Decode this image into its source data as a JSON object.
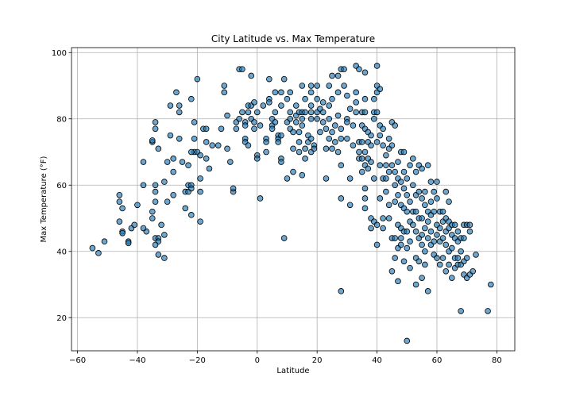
{
  "chart_data": {
    "type": "scatter",
    "title": "City Latitude vs. Max Temperature",
    "xlabel": "Latitude",
    "ylabel": "Max Temperature (°F)",
    "xlim": [
      -62,
      86
    ],
    "ylim": [
      10,
      101.5
    ],
    "xticks": [
      -60,
      -40,
      -20,
      0,
      20,
      40,
      60,
      80
    ],
    "yticks": [
      20,
      40,
      60,
      80,
      100
    ],
    "grid": true,
    "marker_color": "#1f77b4",
    "marker_edge_color": "#000000",
    "points": [
      [
        -55,
        41
      ],
      [
        -53,
        39.5
      ],
      [
        -51,
        43
      ],
      [
        -46,
        57
      ],
      [
        -46,
        55
      ],
      [
        -45,
        53
      ],
      [
        -46,
        49
      ],
      [
        -45,
        46
      ],
      [
        -45,
        45.5
      ],
      [
        -43,
        43
      ],
      [
        -43,
        42.5
      ],
      [
        -42,
        47
      ],
      [
        -41,
        48
      ],
      [
        -40,
        54
      ],
      [
        -38,
        60
      ],
      [
        -38,
        67
      ],
      [
        -37,
        46
      ],
      [
        -38,
        47
      ],
      [
        -35,
        73
      ],
      [
        -35,
        73.5
      ],
      [
        -34,
        77
      ],
      [
        -34,
        79
      ],
      [
        -33,
        71
      ],
      [
        -34,
        60
      ],
      [
        -34,
        58
      ],
      [
        -34,
        55
      ],
      [
        -35,
        52
      ],
      [
        -35,
        50
      ],
      [
        -34,
        44
      ],
      [
        -33,
        44
      ],
      [
        -33,
        43
      ],
      [
        -34,
        42
      ],
      [
        -33,
        39
      ],
      [
        -31,
        38
      ],
      [
        -31,
        45
      ],
      [
        -32,
        48
      ],
      [
        -31,
        61
      ],
      [
        -30,
        55
      ],
      [
        -30,
        67
      ],
      [
        -29,
        84
      ],
      [
        -29,
        75
      ],
      [
        -28,
        68
      ],
      [
        -28,
        64
      ],
      [
        -28,
        57
      ],
      [
        -27,
        88
      ],
      [
        -26,
        84
      ],
      [
        -26,
        82
      ],
      [
        -26,
        74
      ],
      [
        -25,
        67
      ],
      [
        -24,
        58
      ],
      [
        -24,
        53
      ],
      [
        -23,
        66
      ],
      [
        -23,
        60
      ],
      [
        -23,
        58
      ],
      [
        -22,
        86
      ],
      [
        -21,
        79
      ],
      [
        -21,
        74
      ],
      [
        -21,
        70
      ],
      [
        -22,
        70
      ],
      [
        -22,
        60
      ],
      [
        -22,
        59
      ],
      [
        -22,
        51
      ],
      [
        -20,
        92
      ],
      [
        -20,
        70
      ],
      [
        -19,
        69
      ],
      [
        -19,
        62
      ],
      [
        -19,
        58
      ],
      [
        -19,
        49
      ],
      [
        -18,
        77
      ],
      [
        -17,
        77
      ],
      [
        -17,
        73
      ],
      [
        -17,
        68
      ],
      [
        -16,
        65
      ],
      [
        -15,
        72
      ],
      [
        -13,
        72
      ],
      [
        -12,
        77
      ],
      [
        -11,
        90
      ],
      [
        -11,
        88
      ],
      [
        -10,
        81
      ],
      [
        -10,
        71
      ],
      [
        -9,
        67
      ],
      [
        -8,
        58
      ],
      [
        -8,
        59
      ],
      [
        -7,
        79
      ],
      [
        -7,
        77
      ],
      [
        -6,
        95
      ],
      [
        -6,
        80
      ],
      [
        -5,
        95
      ],
      [
        -5,
        82
      ],
      [
        -4,
        79
      ],
      [
        -4,
        78
      ],
      [
        -4,
        74
      ],
      [
        -4,
        73
      ],
      [
        -3,
        84
      ],
      [
        -3,
        82
      ],
      [
        -3,
        72
      ],
      [
        -2,
        93
      ],
      [
        -2,
        84
      ],
      [
        -2,
        80
      ],
      [
        -1,
        85
      ],
      [
        -1,
        79
      ],
      [
        -1,
        77
      ],
      [
        0,
        82
      ],
      [
        0,
        69
      ],
      [
        0,
        68
      ],
      [
        1,
        56
      ],
      [
        1,
        78
      ],
      [
        2,
        84
      ],
      [
        3,
        74
      ],
      [
        3,
        73
      ],
      [
        3,
        70
      ],
      [
        4,
        92
      ],
      [
        4,
        86
      ],
      [
        4,
        85
      ],
      [
        5,
        80
      ],
      [
        5,
        78
      ],
      [
        5,
        77
      ],
      [
        6,
        88
      ],
      [
        6,
        82
      ],
      [
        6,
        79
      ],
      [
        7,
        75
      ],
      [
        7,
        74
      ],
      [
        7,
        73
      ],
      [
        8,
        88
      ],
      [
        8,
        84
      ],
      [
        8,
        75
      ],
      [
        8,
        68
      ],
      [
        8,
        67
      ],
      [
        9,
        92
      ],
      [
        9,
        44
      ],
      [
        10,
        62
      ],
      [
        10,
        79
      ],
      [
        10,
        86
      ],
      [
        11,
        88
      ],
      [
        11,
        82
      ],
      [
        11,
        80
      ],
      [
        11,
        77
      ],
      [
        12,
        76
      ],
      [
        12,
        71
      ],
      [
        12,
        64
      ],
      [
        13,
        84
      ],
      [
        13,
        81
      ],
      [
        13,
        79
      ],
      [
        14,
        82
      ],
      [
        14,
        76
      ],
      [
        14,
        73
      ],
      [
        14,
        70
      ],
      [
        15,
        90
      ],
      [
        15,
        82
      ],
      [
        15,
        80
      ],
      [
        15,
        78
      ],
      [
        15,
        63
      ],
      [
        16,
        86
      ],
      [
        16,
        82
      ],
      [
        16,
        71
      ],
      [
        16,
        68
      ],
      [
        17,
        75
      ],
      [
        17,
        73
      ],
      [
        18,
        90
      ],
      [
        18,
        88
      ],
      [
        18,
        84
      ],
      [
        18,
        82
      ],
      [
        18,
        80
      ],
      [
        18,
        74
      ],
      [
        18,
        70
      ],
      [
        19,
        72
      ],
      [
        19,
        71
      ],
      [
        20,
        90
      ],
      [
        20,
        86
      ],
      [
        20,
        82
      ],
      [
        20,
        80
      ],
      [
        21,
        83
      ],
      [
        21,
        76
      ],
      [
        22,
        85
      ],
      [
        22,
        82
      ],
      [
        22,
        79
      ],
      [
        23,
        62
      ],
      [
        23,
        71
      ],
      [
        23,
        77
      ],
      [
        24,
        90
      ],
      [
        24,
        84
      ],
      [
        24,
        80
      ],
      [
        24,
        74
      ],
      [
        25,
        93
      ],
      [
        25,
        86
      ],
      [
        25,
        76
      ],
      [
        25,
        71
      ],
      [
        26,
        78
      ],
      [
        26,
        73
      ],
      [
        27,
        93
      ],
      [
        27,
        88
      ],
      [
        27,
        81
      ],
      [
        27,
        70
      ],
      [
        28,
        95
      ],
      [
        28,
        77
      ],
      [
        28,
        74
      ],
      [
        28,
        66
      ],
      [
        28,
        56
      ],
      [
        28,
        28
      ],
      [
        29,
        95
      ],
      [
        29,
        90
      ],
      [
        30,
        87
      ],
      [
        30,
        80
      ],
      [
        30,
        79
      ],
      [
        30,
        74
      ],
      [
        31,
        83
      ],
      [
        31,
        62
      ],
      [
        31,
        54
      ],
      [
        32,
        78
      ],
      [
        32,
        72
      ],
      [
        33,
        96
      ],
      [
        33,
        88
      ],
      [
        33,
        85
      ],
      [
        33,
        82
      ],
      [
        34,
        95
      ],
      [
        34,
        73
      ],
      [
        34,
        70
      ],
      [
        34,
        68
      ],
      [
        35,
        82
      ],
      [
        35,
        78
      ],
      [
        35,
        73
      ],
      [
        35,
        68
      ],
      [
        35,
        64
      ],
      [
        36,
        94
      ],
      [
        36,
        86
      ],
      [
        36,
        82
      ],
      [
        36,
        77
      ],
      [
        36,
        70
      ],
      [
        36,
        66
      ],
      [
        36,
        59
      ],
      [
        36,
        56
      ],
      [
        36,
        53
      ],
      [
        37,
        76
      ],
      [
        37,
        73
      ],
      [
        37,
        68
      ],
      [
        37,
        65
      ],
      [
        38,
        75
      ],
      [
        38,
        72
      ],
      [
        38,
        67
      ],
      [
        38,
        50
      ],
      [
        38,
        47
      ],
      [
        39,
        86
      ],
      [
        39,
        82
      ],
      [
        39,
        80
      ],
      [
        39,
        62
      ],
      [
        39,
        49
      ],
      [
        40,
        96
      ],
      [
        40,
        90
      ],
      [
        40,
        88
      ],
      [
        40,
        82
      ],
      [
        40,
        73
      ],
      [
        40,
        48
      ],
      [
        40,
        42
      ],
      [
        41,
        89
      ],
      [
        41,
        78
      ],
      [
        41,
        75
      ],
      [
        41,
        66
      ],
      [
        41,
        56
      ],
      [
        42,
        77
      ],
      [
        42,
        72
      ],
      [
        42,
        62
      ],
      [
        42,
        50
      ],
      [
        42,
        47
      ],
      [
        43,
        69
      ],
      [
        43,
        66
      ],
      [
        43,
        62
      ],
      [
        43,
        58
      ],
      [
        44,
        74
      ],
      [
        44,
        71
      ],
      [
        44,
        64
      ],
      [
        44,
        54
      ],
      [
        44,
        50
      ],
      [
        45,
        79
      ],
      [
        45,
        72
      ],
      [
        45,
        66
      ],
      [
        45,
        44
      ],
      [
        45,
        34
      ],
      [
        46,
        78
      ],
      [
        46,
        64
      ],
      [
        46,
        60
      ],
      [
        46,
        55
      ],
      [
        46,
        44
      ],
      [
        46,
        38
      ],
      [
        47,
        67
      ],
      [
        47,
        62
      ],
      [
        47,
        57
      ],
      [
        47,
        48
      ],
      [
        47,
        41
      ],
      [
        47,
        31
      ],
      [
        48,
        70
      ],
      [
        48,
        61
      ],
      [
        48,
        54
      ],
      [
        48,
        47
      ],
      [
        48,
        44
      ],
      [
        48,
        42
      ],
      [
        49,
        70
      ],
      [
        49,
        64
      ],
      [
        49,
        59
      ],
      [
        49,
        53
      ],
      [
        49,
        46
      ],
      [
        49,
        37
      ],
      [
        50,
        62
      ],
      [
        50,
        57
      ],
      [
        50,
        52
      ],
      [
        50,
        46
      ],
      [
        50,
        41
      ],
      [
        50,
        13
      ],
      [
        51,
        66
      ],
      [
        51,
        55
      ],
      [
        51,
        49
      ],
      [
        51,
        43
      ],
      [
        51,
        35
      ],
      [
        52,
        68
      ],
      [
        52,
        60
      ],
      [
        52,
        52
      ],
      [
        52,
        48
      ],
      [
        53,
        64
      ],
      [
        53,
        57
      ],
      [
        53,
        52
      ],
      [
        53,
        46
      ],
      [
        53,
        38
      ],
      [
        53,
        30
      ],
      [
        54,
        66
      ],
      [
        54,
        58
      ],
      [
        54,
        50
      ],
      [
        54,
        44
      ],
      [
        54,
        37
      ],
      [
        55,
        65
      ],
      [
        55,
        56
      ],
      [
        55,
        50
      ],
      [
        55,
        45
      ],
      [
        55,
        42
      ],
      [
        55,
        32
      ],
      [
        56,
        58
      ],
      [
        56,
        54
      ],
      [
        56,
        47
      ],
      [
        56,
        40
      ],
      [
        56,
        36
      ],
      [
        57,
        66
      ],
      [
        57,
        52
      ],
      [
        57,
        49
      ],
      [
        57,
        44
      ],
      [
        57,
        28
      ],
      [
        58,
        61
      ],
      [
        58,
        55
      ],
      [
        58,
        51
      ],
      [
        58,
        46
      ],
      [
        58,
        42
      ],
      [
        59,
        58
      ],
      [
        59,
        52
      ],
      [
        59,
        43
      ],
      [
        59,
        39
      ],
      [
        60,
        61
      ],
      [
        60,
        56
      ],
      [
        60,
        48
      ],
      [
        60,
        45
      ],
      [
        60,
        38
      ],
      [
        61,
        52
      ],
      [
        61,
        47
      ],
      [
        61,
        43
      ],
      [
        61,
        36
      ],
      [
        62,
        52
      ],
      [
        62,
        49
      ],
      [
        62,
        44
      ],
      [
        62,
        38
      ],
      [
        63,
        58
      ],
      [
        63,
        50
      ],
      [
        63,
        46
      ],
      [
        63,
        42
      ],
      [
        63,
        34
      ],
      [
        64,
        55
      ],
      [
        64,
        49
      ],
      [
        64,
        47
      ],
      [
        64,
        40
      ],
      [
        64,
        36
      ],
      [
        65,
        48
      ],
      [
        65,
        45
      ],
      [
        65,
        41
      ],
      [
        65,
        32
      ],
      [
        66,
        48
      ],
      [
        66,
        44
      ],
      [
        66,
        38
      ],
      [
        66,
        35
      ],
      [
        67,
        46
      ],
      [
        67,
        43
      ],
      [
        67,
        38
      ],
      [
        67,
        36
      ],
      [
        68,
        44
      ],
      [
        68,
        40
      ],
      [
        68,
        36
      ],
      [
        68,
        22
      ],
      [
        69,
        48
      ],
      [
        69,
        44
      ],
      [
        69,
        37
      ],
      [
        69,
        33
      ],
      [
        70,
        48
      ],
      [
        70,
        38
      ],
      [
        70,
        32
      ],
      [
        71,
        48
      ],
      [
        71,
        46
      ],
      [
        71,
        33
      ],
      [
        72,
        34
      ],
      [
        73,
        39
      ],
      [
        77,
        22
      ],
      [
        78,
        30
      ]
    ]
  }
}
